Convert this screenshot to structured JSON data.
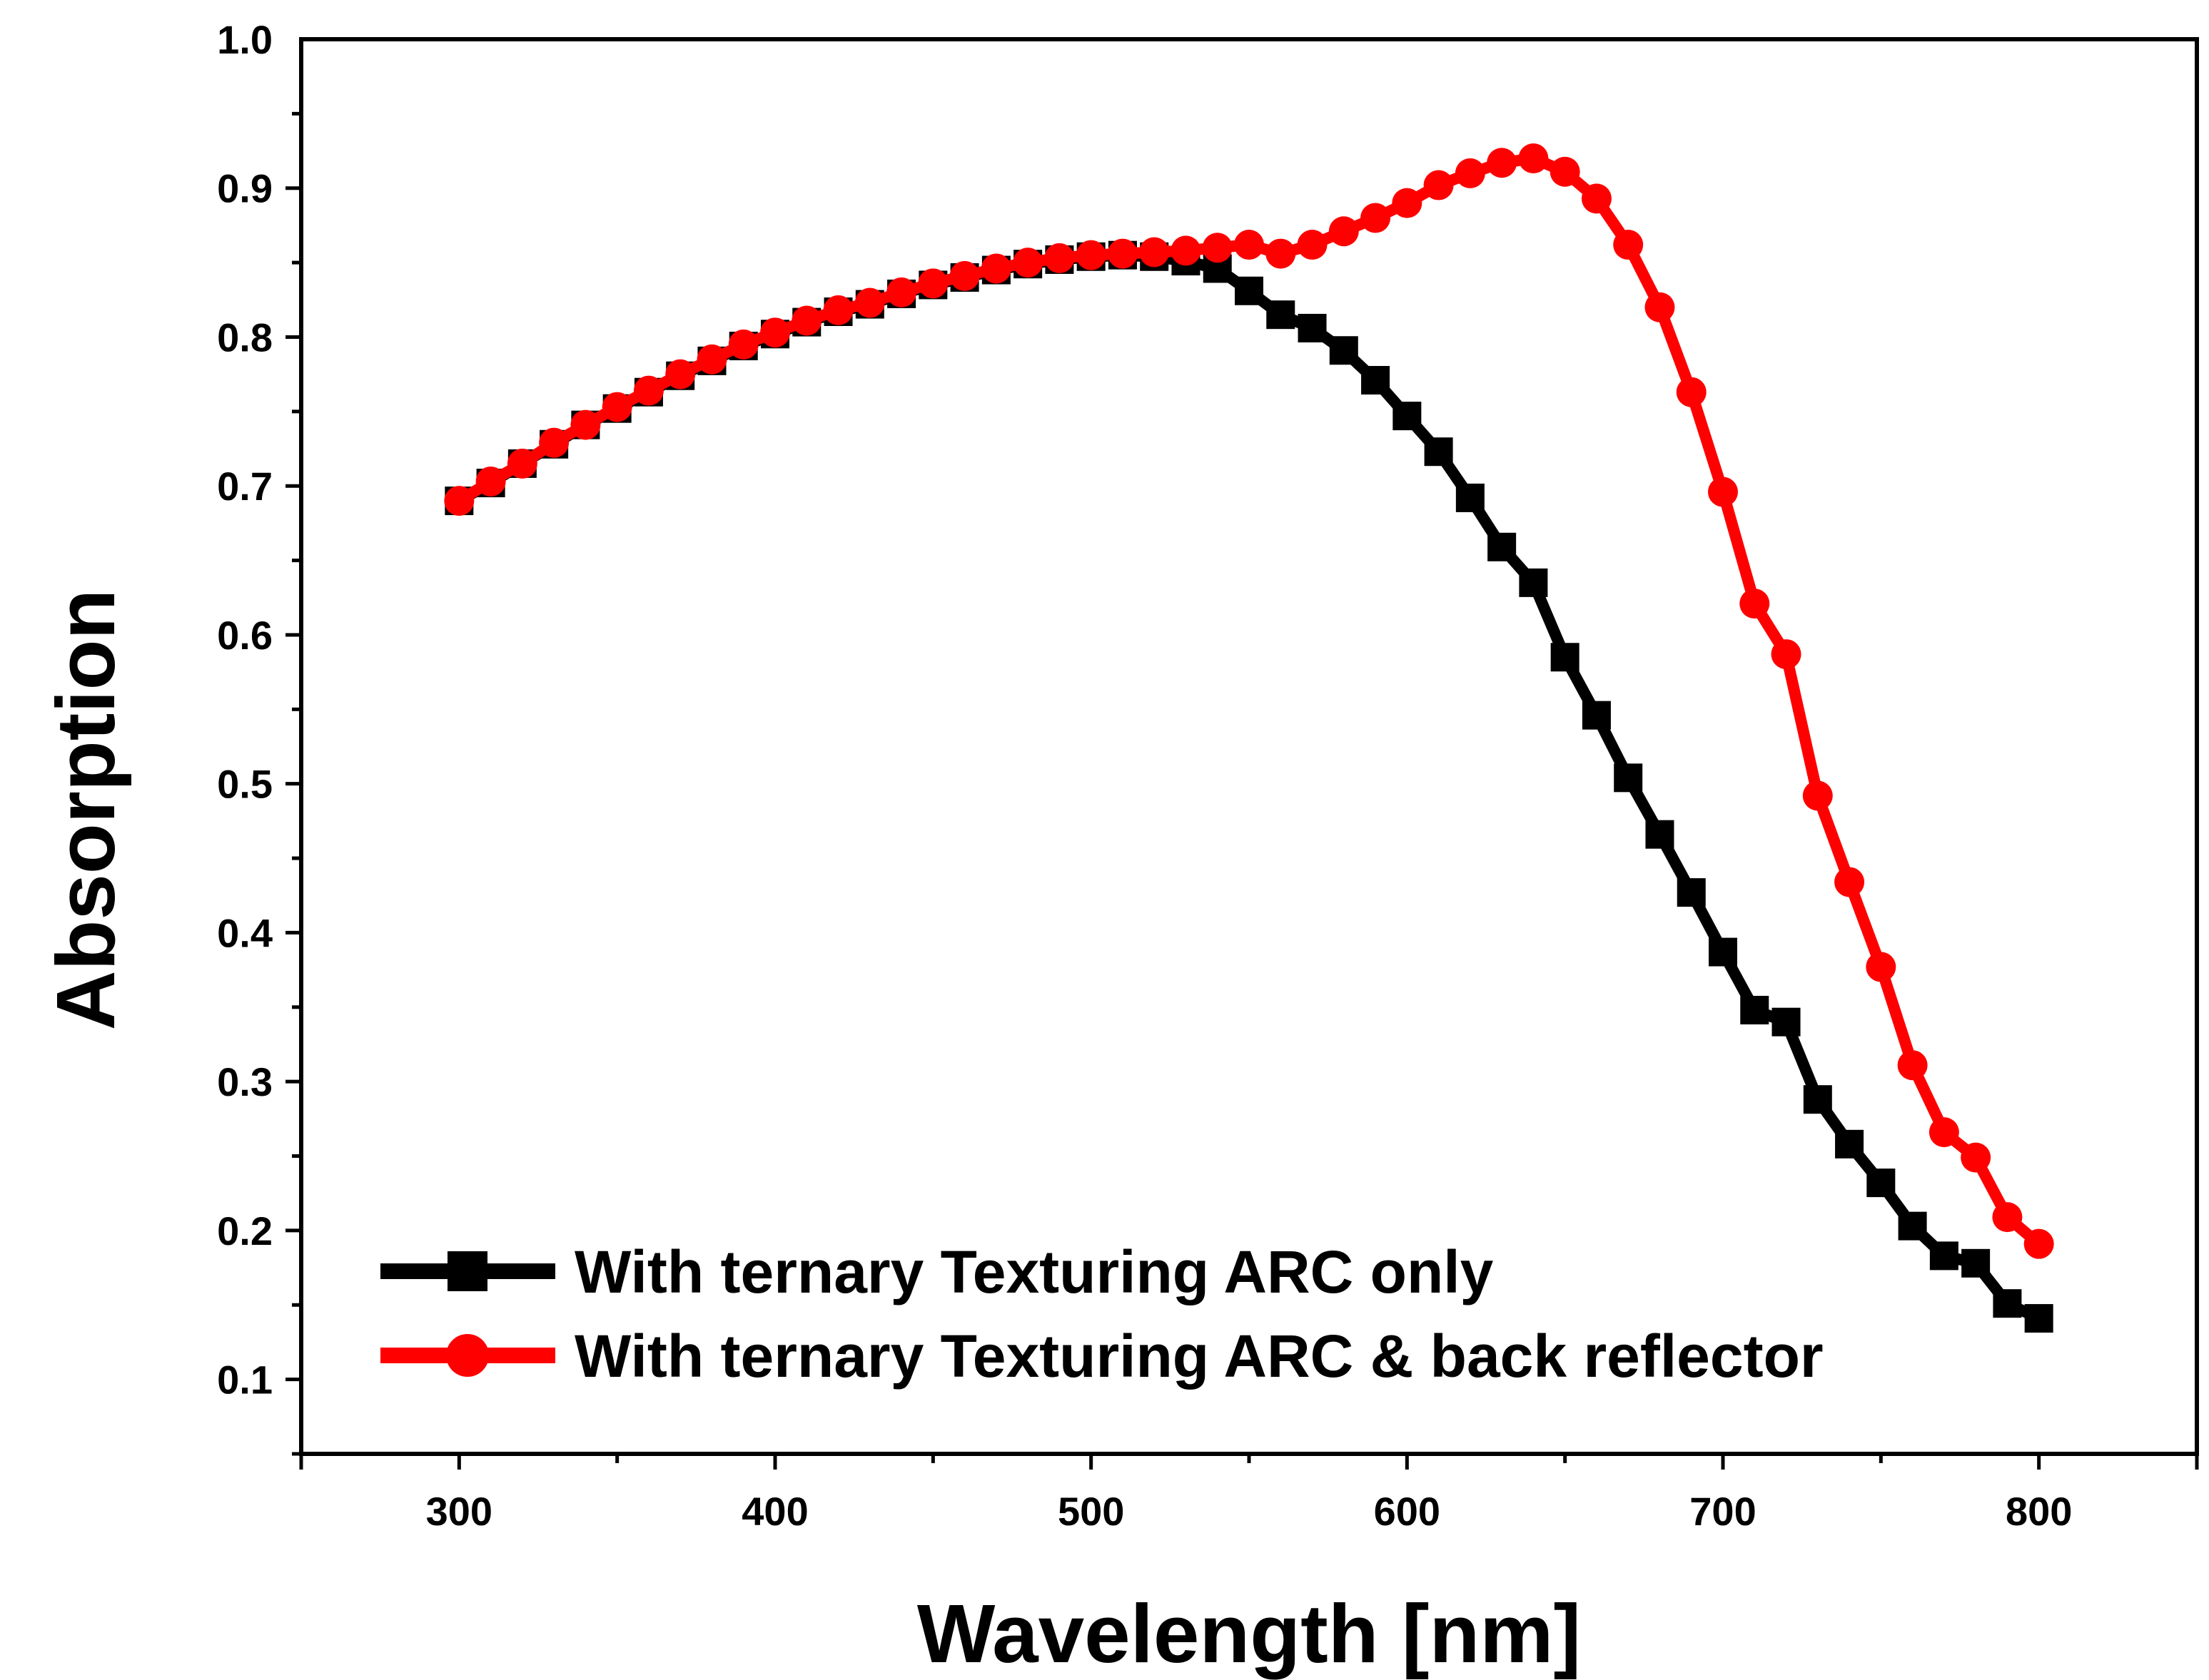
{
  "chart_data": {
    "type": "line",
    "title": "",
    "xlabel": "Wavelength [nm]",
    "ylabel": "Absorption",
    "xlim": [
      250,
      850
    ],
    "ylim": [
      0.05,
      1.0
    ],
    "xticks": [
      300,
      400,
      500,
      600,
      700,
      800
    ],
    "xtick_labels": [
      "300",
      "400",
      "500",
      "600",
      "700",
      "800"
    ],
    "yticks": [
      0.1,
      0.2,
      0.3,
      0.4,
      0.5,
      0.6,
      0.7,
      0.8,
      0.9,
      1.0
    ],
    "ytick_labels": [
      "0.1",
      "0.2",
      "0.3",
      "0.4",
      "0.5",
      "0.6",
      "0.7",
      "0.8",
      "0.9",
      "1.0"
    ],
    "grid": false,
    "legend_position": "bottom-left",
    "x": [
      300,
      310,
      320,
      330,
      340,
      350,
      360,
      370,
      380,
      390,
      400,
      410,
      420,
      430,
      440,
      450,
      460,
      470,
      480,
      490,
      500,
      510,
      520,
      530,
      540,
      550,
      560,
      570,
      580,
      590,
      600,
      610,
      620,
      630,
      640,
      650,
      660,
      670,
      680,
      690,
      700,
      710,
      720,
      730,
      740,
      750,
      760,
      770,
      780,
      790,
      800
    ],
    "series": [
      {
        "name": "With ternary Texturing ARC only",
        "color": "#000000",
        "marker": "square",
        "values": [
          0.69,
          0.702,
          0.715,
          0.728,
          0.741,
          0.752,
          0.763,
          0.774,
          0.784,
          0.794,
          0.802,
          0.81,
          0.817,
          0.822,
          0.829,
          0.835,
          0.84,
          0.845,
          0.849,
          0.852,
          0.854,
          0.855,
          0.854,
          0.851,
          0.846,
          0.831,
          0.815,
          0.806,
          0.791,
          0.771,
          0.747,
          0.723,
          0.692,
          0.659,
          0.635,
          0.585,
          0.546,
          0.504,
          0.466,
          0.427,
          0.387,
          0.348,
          0.34,
          0.288,
          0.258,
          0.232,
          0.203,
          0.183,
          0.178,
          0.151,
          0.141
        ]
      },
      {
        "name": "With ternary Texturing ARC & back reflector",
        "color": "#ff0000",
        "marker": "circle",
        "values": [
          0.69,
          0.703,
          0.715,
          0.729,
          0.741,
          0.753,
          0.764,
          0.775,
          0.785,
          0.795,
          0.803,
          0.811,
          0.818,
          0.823,
          0.83,
          0.836,
          0.841,
          0.846,
          0.85,
          0.853,
          0.855,
          0.856,
          0.857,
          0.858,
          0.86,
          0.862,
          0.856,
          0.862,
          0.871,
          0.88,
          0.89,
          0.902,
          0.91,
          0.917,
          0.92,
          0.911,
          0.893,
          0.862,
          0.82,
          0.763,
          0.696,
          0.621,
          0.587,
          0.492,
          0.434,
          0.377,
          0.311,
          0.266,
          0.249,
          0.209,
          0.191
        ]
      }
    ]
  }
}
